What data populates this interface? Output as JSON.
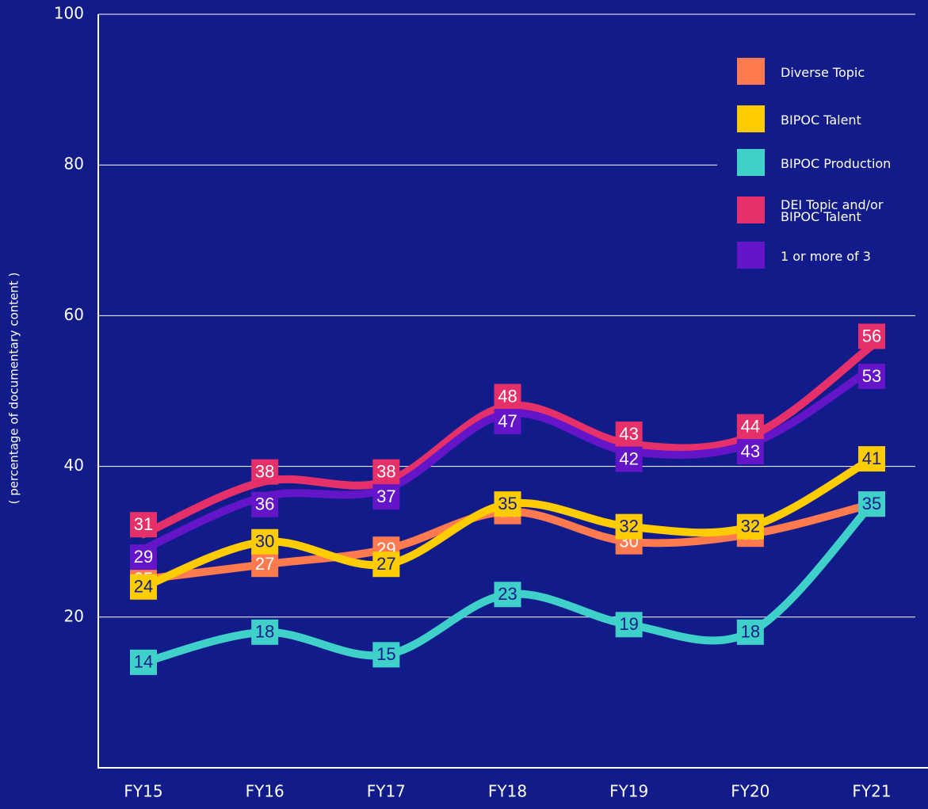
{
  "chart_data": {
    "type": "line",
    "y_label": "( percentage of documentary content )",
    "categories": [
      "FY15",
      "FY16",
      "FY17",
      "FY18",
      "FY19",
      "FY20",
      "FY21"
    ],
    "series": [
      {
        "name": "Diverse Topic",
        "color": "#ff7a4f",
        "values": [
          25,
          27,
          29,
          34,
          30,
          31,
          35
        ]
      },
      {
        "name": "BIPOC Talent",
        "color": "#ffcc00",
        "values": [
          24,
          30,
          27,
          35,
          32,
          32,
          41
        ]
      },
      {
        "name": "BIPOC Production",
        "color": "#3fd1c9",
        "values": [
          14,
          18,
          15,
          23,
          19,
          18,
          35
        ]
      },
      {
        "name": "DEI Topic and/or BIPOC Talent",
        "color": "#e6306a",
        "values": [
          31,
          38,
          38,
          48,
          43,
          44,
          56
        ]
      },
      {
        "name": "1 or more of 3",
        "color": "#6415c8",
        "values": [
          29,
          36,
          37,
          47,
          42,
          43,
          53
        ]
      }
    ],
    "ylim": [
      0,
      100
    ],
    "yticks": [
      20,
      40,
      60,
      80,
      100
    ],
    "grid": true,
    "legend": "upper right"
  }
}
